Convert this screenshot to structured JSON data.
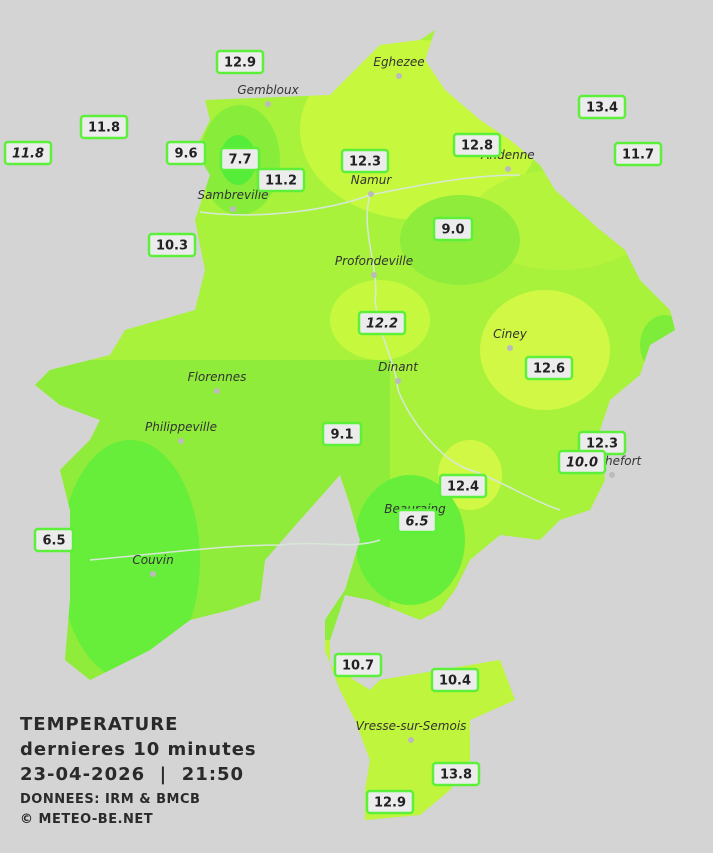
{
  "towns": [
    "Eghezee",
    "Gembloux",
    "Andenne",
    "Namur",
    "Sambreville",
    "Profondeville",
    "Ciney",
    "Dinant",
    "Florennes",
    "Philippeville",
    "Rochefort",
    "Beauraing",
    "Couvin",
    "Vresse-sur-Semois"
  ],
  "stations": [
    {
      "label": "12.9",
      "italic": false
    },
    {
      "label": "11.8",
      "italic": false
    },
    {
      "label": "11.8",
      "italic": true
    },
    {
      "label": "9.6",
      "italic": false
    },
    {
      "label": "7.7",
      "italic": false
    },
    {
      "label": "11.2",
      "italic": false
    },
    {
      "label": "12.3",
      "italic": false
    },
    {
      "label": "12.8",
      "italic": false
    },
    {
      "label": "13.4",
      "italic": false
    },
    {
      "label": "11.7",
      "italic": false
    },
    {
      "label": "9.0",
      "italic": false
    },
    {
      "label": "10.3",
      "italic": false
    },
    {
      "label": "12.2",
      "italic": true
    },
    {
      "label": "12.6",
      "italic": false
    },
    {
      "label": "9.1",
      "italic": false
    },
    {
      "label": "12.3",
      "italic": false
    },
    {
      "label": "10.0",
      "italic": true
    },
    {
      "label": "12.4",
      "italic": false
    },
    {
      "label": "6.5",
      "italic": true
    },
    {
      "label": "6.5",
      "italic": false
    },
    {
      "label": "10.7",
      "italic": false
    },
    {
      "label": "10.4",
      "italic": false
    },
    {
      "label": "13.8",
      "italic": false
    },
    {
      "label": "12.9",
      "italic": false
    }
  ],
  "caption": {
    "title": "TEMPERATURE",
    "subtitle": "dernieres 10 minutes",
    "datetime": "23-04-2026  |  21:50",
    "source": "DONNEES: IRM & BMCB",
    "copyright": "© METEO-BE.NET"
  }
}
